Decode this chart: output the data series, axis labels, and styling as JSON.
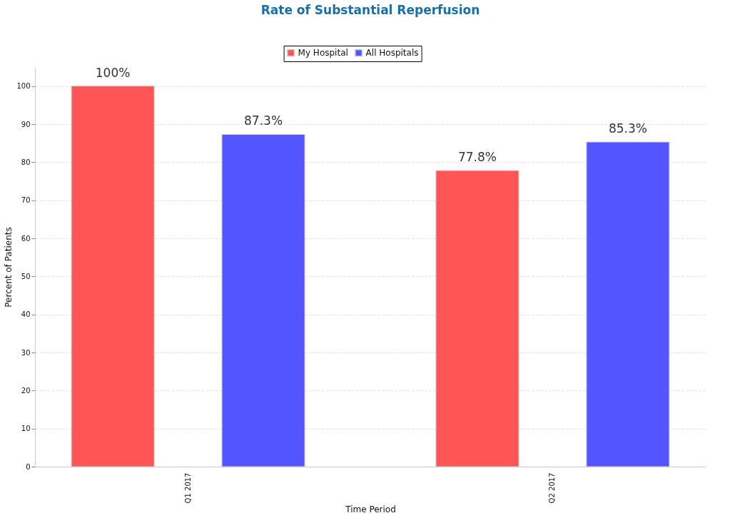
{
  "chart_data": {
    "type": "bar",
    "title": "Rate of Substantial Reperfusion",
    "xlabel": "Time Period",
    "ylabel": "Percent of Patients",
    "categories": [
      "Q1 2017",
      "Q2 2017"
    ],
    "series": [
      {
        "name": "My Hospital",
        "color": "#ff5555",
        "values": [
          100,
          77.8
        ],
        "value_labels": [
          "100%",
          "77.8%"
        ]
      },
      {
        "name": "All Hospitals",
        "color": "#5555ff",
        "values": [
          87.3,
          85.3
        ],
        "value_labels": [
          "87.3%",
          "85.3%"
        ]
      }
    ],
    "ylim": [
      0,
      105
    ],
    "yticks": [
      0,
      10,
      20,
      30,
      40,
      50,
      60,
      70,
      80,
      90,
      100
    ],
    "grid": "y",
    "legend": "top"
  }
}
